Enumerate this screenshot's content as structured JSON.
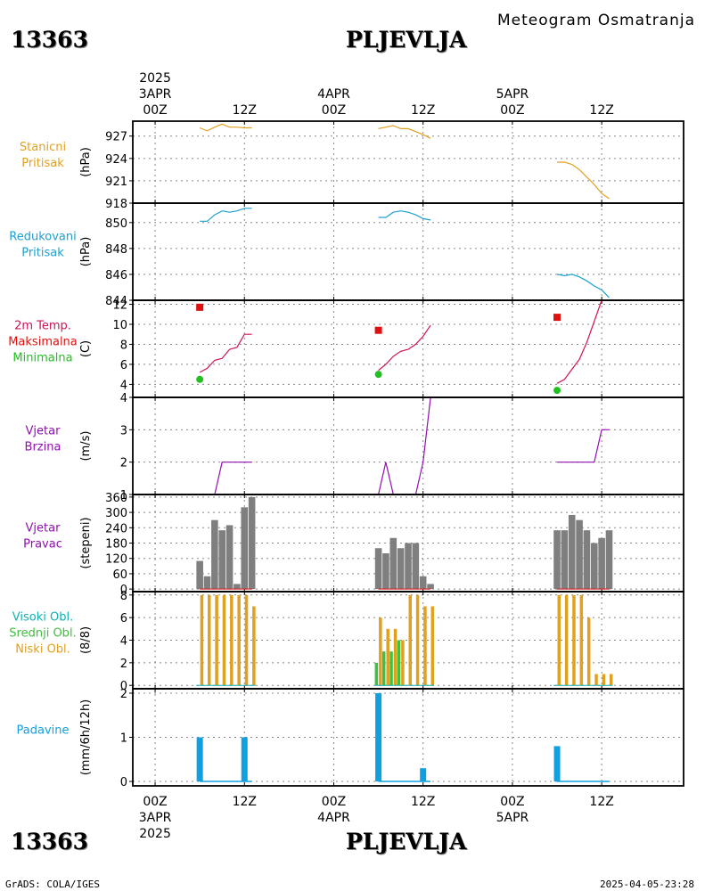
{
  "header": {
    "station_id": "13363",
    "station_name": "PLJEVLJA",
    "title": "Meteogram Osmatranja"
  },
  "footer": {
    "station_id": "13363",
    "station_name": "PLJEVLJA",
    "credit": "GrADS: COLA/IGES",
    "timestamp": "2025-04-05-23:28"
  },
  "time_axis": {
    "year": "2025",
    "ticks": [
      {
        "hour": 0,
        "label": "00Z",
        "day": "3APR"
      },
      {
        "hour": 12,
        "label": "12Z",
        "day": ""
      },
      {
        "hour": 24,
        "label": "00Z",
        "day": "4APR"
      },
      {
        "hour": 36,
        "label": "12Z",
        "day": ""
      },
      {
        "hour": 48,
        "label": "00Z",
        "day": "5APR"
      },
      {
        "hour": 60,
        "label": "12Z",
        "day": ""
      }
    ],
    "range_hours": [
      -3,
      71
    ]
  },
  "colors": {
    "station_pressure": "#e0a020",
    "reduced_pressure": "#1ea0d0",
    "temperature": "#d0105a",
    "maximum": "#e01010",
    "minimum": "#20c020",
    "wind_speed": "#9010b0",
    "wind_direction_bar": "#7f7f7f",
    "high_cloud": "#10b0b0",
    "mid_cloud": "#40c040",
    "low_cloud": "#e0a020",
    "precipitation": "#10a0e0",
    "grid": "#888888"
  },
  "chart_data": [
    {
      "type": "line",
      "labels": [
        "Stanicni",
        "Pritisak"
      ],
      "ylabel": "(hPa)",
      "yticks": [
        918,
        921,
        924,
        927
      ],
      "ylim": [
        918,
        929
      ],
      "series": [
        {
          "x": [
            6,
            7,
            8,
            9,
            10,
            11,
            12,
            13,
            30,
            31,
            32,
            33,
            34,
            35,
            36,
            37,
            54,
            55,
            56,
            57,
            58,
            59,
            60,
            61
          ],
          "y": [
            928.1,
            927.7,
            928.2,
            928.6,
            928.2,
            928.2,
            928.1,
            928.1,
            928.0,
            928.2,
            928.4,
            928.0,
            928.0,
            927.6,
            927.2,
            926.7,
            923.5,
            923.5,
            923.2,
            922.5,
            921.5,
            920.5,
            919.3,
            918.6
          ]
        }
      ]
    },
    {
      "type": "line",
      "labels": [
        "Redukovani",
        "Pritisak"
      ],
      "ylabel": "(hPa)",
      "yticks": [
        844,
        846,
        848,
        850
      ],
      "ylim": [
        844,
        851.5
      ],
      "series": [
        {
          "x": [
            6,
            7,
            8,
            9,
            10,
            11,
            12,
            13,
            30,
            31,
            32,
            33,
            34,
            35,
            36,
            37,
            54,
            55,
            56,
            57,
            58,
            59,
            60,
            61
          ],
          "y": [
            850.1,
            850.1,
            850.6,
            850.9,
            850.8,
            850.9,
            851.1,
            851.1,
            850.4,
            850.4,
            850.8,
            850.9,
            850.8,
            850.6,
            850.3,
            850.2,
            846.0,
            845.9,
            846.0,
            845.8,
            845.5,
            845.1,
            844.8,
            844.2
          ]
        }
      ]
    },
    {
      "type": "line",
      "labels": [
        "2m Temp.",
        "Maksimalna",
        "Minimalna"
      ],
      "ylabel": "(C)",
      "yticks": [
        4,
        6,
        8,
        10,
        12
      ],
      "ylim": [
        2.7,
        12.4
      ],
      "series": [
        {
          "x": [
            6,
            7,
            8,
            9,
            10,
            11,
            12,
            13,
            30,
            31,
            32,
            33,
            34,
            35,
            36,
            37,
            54,
            55,
            56,
            57,
            58,
            59,
            60,
            61
          ],
          "y": [
            5.2,
            5.6,
            6.4,
            6.6,
            7.5,
            7.7,
            9.0,
            9.0,
            5.4,
            6.0,
            6.8,
            7.3,
            7.5,
            8.0,
            8.8,
            9.9,
            4.1,
            4.5,
            5.5,
            6.5,
            8.2,
            10.3,
            12.4,
            12.4
          ]
        },
        {
          "name": "Maksimalna",
          "x": [
            6,
            30,
            54
          ],
          "y": [
            11.7,
            9.4,
            10.7
          ]
        },
        {
          "name": "Minimalna",
          "x": [
            6,
            30,
            54
          ],
          "y": [
            4.5,
            5.0,
            3.4
          ]
        }
      ]
    },
    {
      "type": "line",
      "labels": [
        "Vjetar",
        "Brzina"
      ],
      "ylabel": "(m/s)",
      "yticks": [
        1,
        2,
        3,
        4
      ],
      "ylim": [
        1,
        4
      ],
      "series": [
        {
          "x": [
            6,
            7,
            8,
            9,
            10,
            11,
            12,
            13,
            30,
            31,
            32,
            33,
            34,
            35,
            36,
            37,
            54,
            55,
            56,
            57,
            58,
            59,
            60,
            61
          ],
          "y": [
            1,
            1,
            1,
            2,
            2,
            2,
            2,
            2,
            1,
            2,
            1,
            1,
            1,
            1,
            2,
            4,
            2,
            2,
            2,
            2,
            2,
            2,
            3,
            3
          ]
        }
      ]
    },
    {
      "type": "bar",
      "labels": [
        "Vjetar",
        "Pravac"
      ],
      "ylabel": "(stepeni)",
      "yticks": [
        0,
        60,
        120,
        180,
        240,
        300,
        360
      ],
      "ylim": [
        -10,
        370
      ],
      "series": [
        {
          "x": [
            6,
            7,
            8,
            9,
            10,
            11,
            12,
            13,
            30,
            31,
            32,
            33,
            34,
            35,
            36,
            37,
            54,
            55,
            56,
            57,
            58,
            59,
            60,
            61
          ],
          "y": [
            110,
            50,
            270,
            230,
            250,
            20,
            320,
            360,
            160,
            140,
            200,
            160,
            180,
            180,
            50,
            20,
            230,
            230,
            290,
            270,
            230,
            180,
            200,
            230
          ]
        }
      ]
    },
    {
      "type": "bar",
      "labels": [
        "Visoki Obl.",
        "Srednji Obl.",
        "Niski Obl."
      ],
      "ylabel": "(8/8)",
      "yticks": [
        0,
        2,
        4,
        6,
        8
      ],
      "ylim": [
        -0.3,
        8.3
      ],
      "series": [
        {
          "name": "Visoki Obl.",
          "x": [
            6,
            7,
            8,
            9,
            10,
            11,
            12,
            13,
            30,
            31,
            32,
            33,
            34,
            35,
            36,
            37,
            54,
            55,
            56,
            57,
            58,
            59,
            60,
            61
          ],
          "y": [
            0,
            0,
            0,
            0,
            0,
            0,
            0,
            0,
            0,
            0,
            0,
            0,
            0,
            0,
            0,
            0,
            0,
            0,
            0,
            0,
            0,
            0,
            0,
            0
          ]
        },
        {
          "name": "Srednji Obl.",
          "x": [
            6,
            7,
            8,
            9,
            10,
            11,
            12,
            13,
            30,
            31,
            32,
            33,
            34,
            35,
            36,
            37,
            54,
            55,
            56,
            57,
            58,
            59,
            60,
            61
          ],
          "y": [
            0,
            0,
            0,
            0,
            0,
            0,
            0,
            0,
            2,
            3,
            3,
            4,
            0,
            0,
            0,
            0,
            0,
            0,
            0,
            0,
            0,
            0,
            0,
            0
          ]
        },
        {
          "name": "Niski Obl.",
          "x": [
            6,
            7,
            8,
            9,
            10,
            11,
            12,
            13,
            30,
            31,
            32,
            33,
            34,
            35,
            36,
            37,
            54,
            55,
            56,
            57,
            58,
            59,
            60,
            61
          ],
          "y": [
            8,
            8,
            8,
            8,
            8,
            8,
            8,
            7,
            6,
            5,
            5,
            4,
            8,
            8,
            7,
            7,
            8,
            8,
            8,
            8,
            6,
            1,
            1,
            1
          ]
        }
      ]
    },
    {
      "type": "bar",
      "labels": [
        "Padavine"
      ],
      "ylabel": "(mm/6h/12h)",
      "yticks": [
        0,
        1,
        2
      ],
      "ylim": [
        -0.1,
        2.1
      ],
      "series": [
        {
          "x": [
            6,
            12,
            30,
            36,
            54
          ],
          "y": [
            1.0,
            1.0,
            2.0,
            0.3,
            0.8
          ]
        }
      ]
    }
  ]
}
